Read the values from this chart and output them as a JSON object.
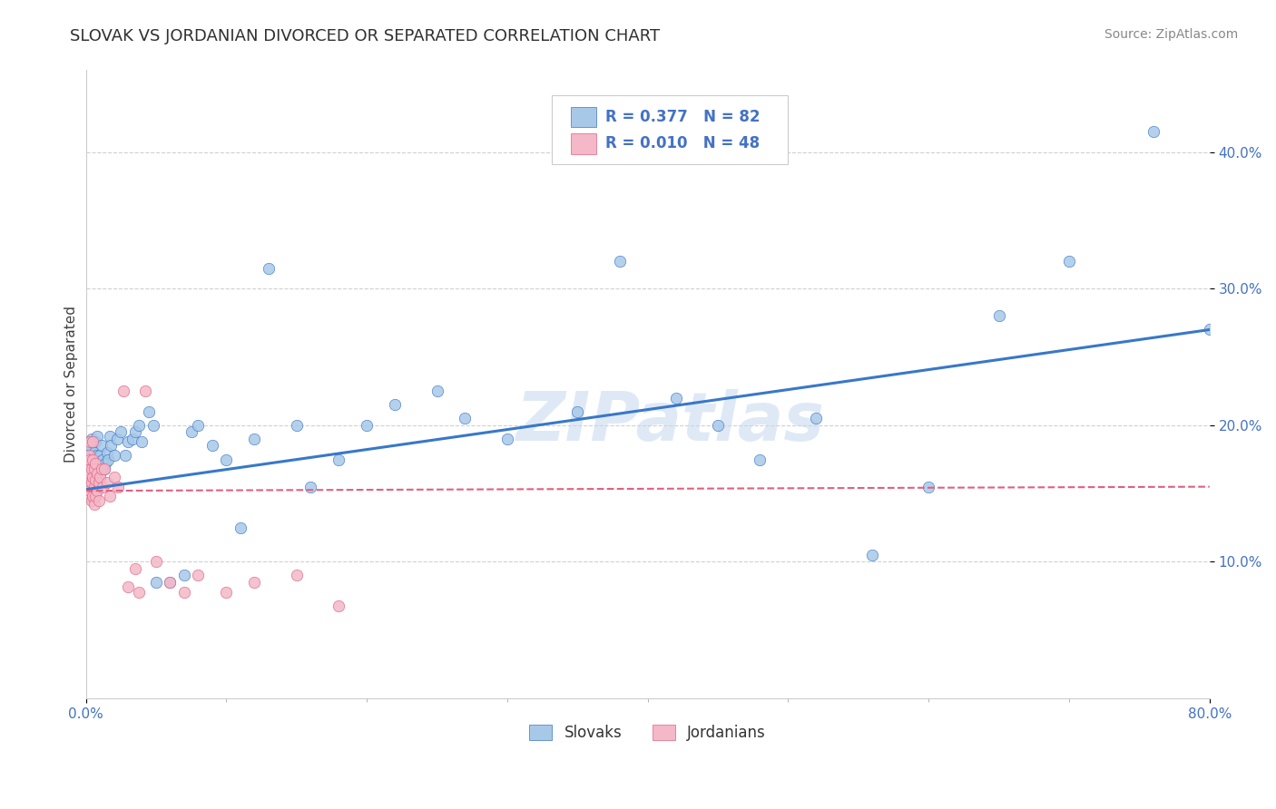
{
  "title": "SLOVAK VS JORDANIAN DIVORCED OR SEPARATED CORRELATION CHART",
  "source": "Source: ZipAtlas.com",
  "ylabel": "Divorced or Separated",
  "xlim": [
    0.0,
    0.8
  ],
  "ylim": [
    0.0,
    0.46
  ],
  "x_minor_ticks": [
    0.1,
    0.2,
    0.3,
    0.4,
    0.5,
    0.6,
    0.7
  ],
  "x_label_ticks": [
    0.0,
    0.8
  ],
  "x_label_values": [
    "0.0%",
    "80.0%"
  ],
  "yticks": [
    0.1,
    0.2,
    0.3,
    0.4
  ],
  "ytick_labels": [
    "10.0%",
    "20.0%",
    "30.0%",
    "40.0%"
  ],
  "slovak_color": "#a8c8e8",
  "jordanian_color": "#f4b8c8",
  "slovak_line_color": "#3878c8",
  "jordanian_line_color": "#e06080",
  "R_slovak": 0.377,
  "N_slovak": 82,
  "R_jordanian": 0.01,
  "N_jordanian": 48,
  "watermark": "ZIPatlas",
  "background_color": "#ffffff",
  "grid_color": "#d0d0d0",
  "title_color": "#303030",
  "axis_label_color": "#404040",
  "tick_color": "#4472c4",
  "slovak_trend_y0": 0.153,
  "slovak_trend_y1": 0.27,
  "jordanian_trend_y0": 0.152,
  "jordanian_trend_y1": 0.155,
  "slovak_x": [
    0.001,
    0.001,
    0.001,
    0.002,
    0.002,
    0.002,
    0.002,
    0.003,
    0.003,
    0.003,
    0.003,
    0.004,
    0.004,
    0.004,
    0.004,
    0.005,
    0.005,
    0.005,
    0.005,
    0.006,
    0.006,
    0.006,
    0.007,
    0.007,
    0.007,
    0.007,
    0.008,
    0.008,
    0.008,
    0.009,
    0.009,
    0.01,
    0.01,
    0.011,
    0.012,
    0.013,
    0.014,
    0.015,
    0.016,
    0.017,
    0.018,
    0.02,
    0.022,
    0.025,
    0.028,
    0.03,
    0.033,
    0.035,
    0.038,
    0.04,
    0.045,
    0.048,
    0.05,
    0.06,
    0.07,
    0.075,
    0.08,
    0.09,
    0.1,
    0.11,
    0.12,
    0.13,
    0.15,
    0.16,
    0.18,
    0.2,
    0.22,
    0.25,
    0.27,
    0.3,
    0.35,
    0.38,
    0.42,
    0.45,
    0.48,
    0.52,
    0.56,
    0.6,
    0.65,
    0.7,
    0.76,
    0.8
  ],
  "slovak_y": [
    0.155,
    0.168,
    0.175,
    0.15,
    0.16,
    0.172,
    0.182,
    0.155,
    0.163,
    0.175,
    0.185,
    0.152,
    0.165,
    0.178,
    0.19,
    0.15,
    0.162,
    0.17,
    0.188,
    0.155,
    0.168,
    0.18,
    0.148,
    0.16,
    0.175,
    0.188,
    0.165,
    0.178,
    0.192,
    0.158,
    0.172,
    0.162,
    0.178,
    0.185,
    0.175,
    0.168,
    0.172,
    0.18,
    0.175,
    0.192,
    0.185,
    0.178,
    0.19,
    0.195,
    0.178,
    0.188,
    0.19,
    0.195,
    0.2,
    0.188,
    0.21,
    0.2,
    0.085,
    0.085,
    0.09,
    0.195,
    0.2,
    0.185,
    0.175,
    0.125,
    0.19,
    0.315,
    0.2,
    0.155,
    0.175,
    0.2,
    0.215,
    0.225,
    0.205,
    0.19,
    0.21,
    0.32,
    0.22,
    0.2,
    0.175,
    0.205,
    0.105,
    0.155,
    0.28,
    0.32,
    0.415,
    0.27
  ],
  "jordanian_x": [
    0.001,
    0.001,
    0.001,
    0.002,
    0.002,
    0.002,
    0.003,
    0.003,
    0.003,
    0.003,
    0.004,
    0.004,
    0.004,
    0.005,
    0.005,
    0.005,
    0.005,
    0.006,
    0.006,
    0.006,
    0.007,
    0.007,
    0.007,
    0.008,
    0.008,
    0.009,
    0.009,
    0.01,
    0.011,
    0.012,
    0.013,
    0.015,
    0.017,
    0.02,
    0.023,
    0.027,
    0.03,
    0.035,
    0.038,
    0.042,
    0.05,
    0.06,
    0.07,
    0.08,
    0.1,
    0.12,
    0.15,
    0.18
  ],
  "jordanian_y": [
    0.148,
    0.16,
    0.172,
    0.155,
    0.168,
    0.178,
    0.152,
    0.165,
    0.175,
    0.188,
    0.145,
    0.158,
    0.168,
    0.148,
    0.162,
    0.175,
    0.188,
    0.142,
    0.155,
    0.168,
    0.148,
    0.16,
    0.172,
    0.152,
    0.165,
    0.145,
    0.158,
    0.162,
    0.168,
    0.155,
    0.168,
    0.158,
    0.148,
    0.162,
    0.155,
    0.225,
    0.082,
    0.095,
    0.078,
    0.225,
    0.1,
    0.085,
    0.078,
    0.09,
    0.078,
    0.085,
    0.09,
    0.068
  ]
}
